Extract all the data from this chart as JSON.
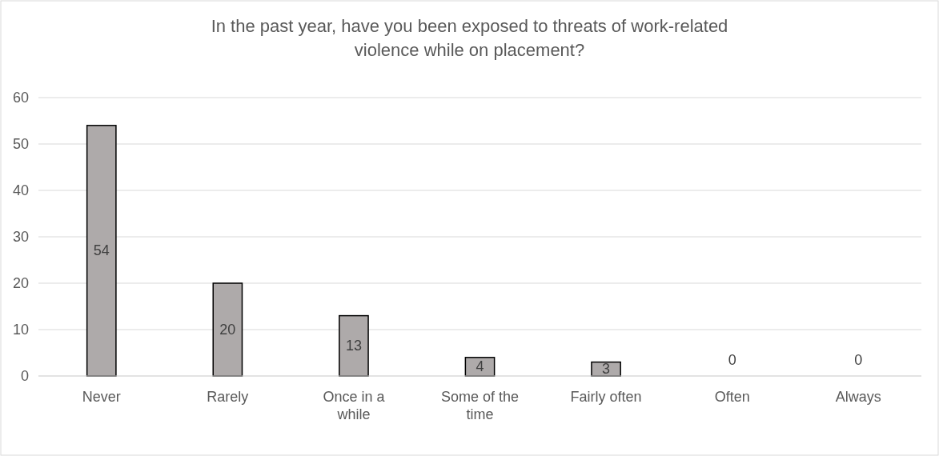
{
  "chart_data": {
    "type": "bar",
    "title": "In the past year, have you been exposed to threats of work-related violence while on placement?",
    "categories": [
      "Never",
      "Rarely",
      "Once in a while",
      "Some of the time",
      "Fairly often",
      "Often",
      "Always"
    ],
    "values": [
      54,
      20,
      13,
      4,
      3,
      0,
      0
    ],
    "color": "#aeaaaa",
    "ylim": [
      0,
      60
    ],
    "yticks": [
      0,
      10,
      20,
      30,
      40,
      50,
      60
    ],
    "grid": "y",
    "data_labels": true
  }
}
